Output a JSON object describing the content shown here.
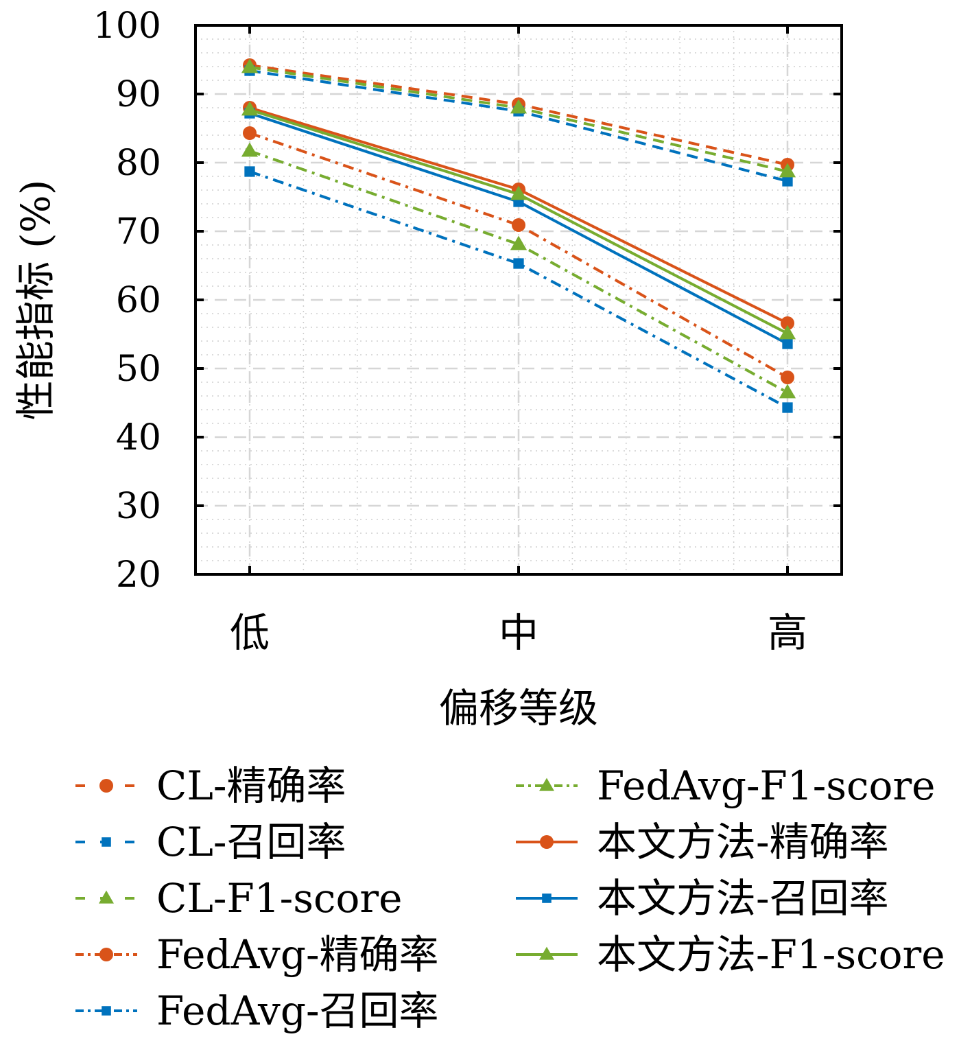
{
  "chart_data": {
    "type": "line",
    "title": "",
    "xlabel": "偏移等级",
    "ylabel": "性能指标 (%)",
    "categories": [
      "低",
      "中",
      "高"
    ],
    "ylim": [
      20,
      100
    ],
    "yticks": [
      20,
      30,
      40,
      50,
      60,
      70,
      80,
      90,
      100
    ],
    "grid": true,
    "legend_position": "bottom",
    "series": [
      {
        "name": "CL-精确率",
        "color": "#D95319",
        "marker": "circle",
        "line": "dashed",
        "values": [
          94.2,
          88.5,
          79.7
        ]
      },
      {
        "name": "CL-召回率",
        "color": "#0072BD",
        "marker": "square",
        "line": "dashed",
        "values": [
          93.4,
          87.5,
          77.3
        ]
      },
      {
        "name": "CL-F1-score",
        "color": "#77AC30",
        "marker": "triangle",
        "line": "dashed",
        "values": [
          93.9,
          88.0,
          78.7
        ]
      },
      {
        "name": "FedAvg-精确率",
        "color": "#D95319",
        "marker": "circle",
        "line": "dashdot",
        "values": [
          84.3,
          70.9,
          48.7
        ]
      },
      {
        "name": "FedAvg-召回率",
        "color": "#0072BD",
        "marker": "square",
        "line": "dashdot",
        "values": [
          78.7,
          65.3,
          44.3
        ]
      },
      {
        "name": "FedAvg-F1-score",
        "color": "#77AC30",
        "marker": "triangle",
        "line": "dashdot",
        "values": [
          81.7,
          68.1,
          46.5
        ]
      },
      {
        "name": "本文方法-精确率",
        "color": "#D95319",
        "marker": "circle",
        "line": "solid",
        "values": [
          88.0,
          76.1,
          56.6
        ]
      },
      {
        "name": "本文方法-召回率",
        "color": "#0072BD",
        "marker": "square",
        "line": "solid",
        "values": [
          87.2,
          74.3,
          53.6
        ]
      },
      {
        "name": "本文方法-F1-score",
        "color": "#77AC30",
        "marker": "triangle",
        "line": "solid",
        "values": [
          87.7,
          75.4,
          55.1
        ]
      }
    ]
  }
}
